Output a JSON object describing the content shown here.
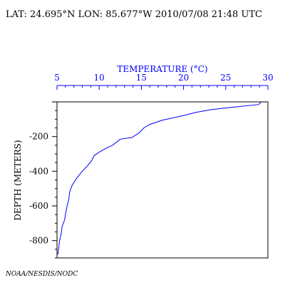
{
  "header": {
    "text": "LAT: 24.695°N LON: 85.677°W 2010/07/08 21:48 UTC"
  },
  "footer": {
    "credit": "NOAA/NESDIS/NODC"
  },
  "colors": {
    "temperature_axis": "#0000ff",
    "profile_line": "#0000ff",
    "depth_axis": "#000000",
    "background": "#ffffff"
  },
  "chart_data": {
    "type": "line",
    "title": "",
    "xlabel": "TEMPERATURE (°C)",
    "ylabel": "DEPTH (METERS)",
    "xlim": [
      5,
      30
    ],
    "ylim": [
      -900,
      0
    ],
    "x_axis_position": "top",
    "x_ticks": [
      "5",
      "10",
      "15",
      "20",
      "25",
      "30"
    ],
    "y_ticks": [
      "-200",
      "-400",
      "-600",
      "-800"
    ],
    "grid": false,
    "legend": "none",
    "series": [
      {
        "values": [
          {
            "x": 29.2,
            "y": 0
          },
          {
            "x": 28.9,
            "y": -15
          },
          {
            "x": 25.0,
            "y": -35
          },
          {
            "x": 23.2,
            "y": -45
          },
          {
            "x": 21.5,
            "y": -60
          },
          {
            "x": 19.9,
            "y": -80
          },
          {
            "x": 17.5,
            "y": -105
          },
          {
            "x": 16.0,
            "y": -130
          },
          {
            "x": 15.3,
            "y": -150
          },
          {
            "x": 14.7,
            "y": -180
          },
          {
            "x": 13.9,
            "y": -205
          },
          {
            "x": 12.5,
            "y": -215
          },
          {
            "x": 11.6,
            "y": -250
          },
          {
            "x": 10.7,
            "y": -270
          },
          {
            "x": 10.0,
            "y": -290
          },
          {
            "x": 9.4,
            "y": -310
          },
          {
            "x": 9.1,
            "y": -340
          },
          {
            "x": 8.6,
            "y": -370
          },
          {
            "x": 8.0,
            "y": -400
          },
          {
            "x": 7.5,
            "y": -430
          },
          {
            "x": 7.2,
            "y": -450
          },
          {
            "x": 6.8,
            "y": -480
          },
          {
            "x": 6.5,
            "y": -520
          },
          {
            "x": 6.4,
            "y": -560
          },
          {
            "x": 6.2,
            "y": -600
          },
          {
            "x": 6.0,
            "y": -650
          },
          {
            "x": 5.9,
            "y": -680
          },
          {
            "x": 5.6,
            "y": -720
          },
          {
            "x": 5.5,
            "y": -760
          },
          {
            "x": 5.3,
            "y": -800
          },
          {
            "x": 5.2,
            "y": -840
          },
          {
            "x": 5.1,
            "y": -880
          }
        ]
      }
    ]
  }
}
